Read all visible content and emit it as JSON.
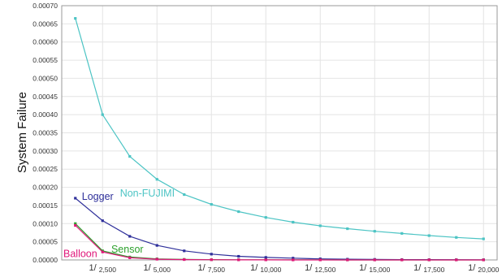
{
  "chart_data": {
    "type": "line",
    "title": "",
    "xlabel": "",
    "ylabel": "System Failure",
    "ylim": [
      0,
      0.0007
    ],
    "y_ticks": [
      "0.00000",
      "0.00005",
      "0.00010",
      "0.00015",
      "0.00020",
      "0.00025",
      "0.00030",
      "0.00035",
      "0.00040",
      "0.00045",
      "0.00050",
      "0.00055",
      "0.00060",
      "0.00065",
      "0.00070"
    ],
    "x_ticks": [
      {
        "pre": "1/",
        "num": "2,500"
      },
      {
        "pre": "1/",
        "num": "5,000"
      },
      {
        "pre": "1/",
        "num": "7,500"
      },
      {
        "pre": "1/",
        "num": "10,000"
      },
      {
        "pre": "1/",
        "num": "12,500"
      },
      {
        "pre": "1/",
        "num": "15,000"
      },
      {
        "pre": "1/",
        "num": "17,500"
      },
      {
        "pre": "1/",
        "num": "20,000"
      }
    ],
    "grid": true,
    "x": [
      1250,
      2500,
      3750,
      5000,
      6250,
      7500,
      8750,
      10000,
      11250,
      12500,
      13750,
      15000,
      16250,
      17500,
      18750,
      20000
    ],
    "series": [
      {
        "name": "Non-FUJIMI",
        "color": "#4cc4c4",
        "values": [
          0.000665,
          0.0004,
          0.000285,
          0.000222,
          0.00018,
          0.000153,
          0.000133,
          0.000117,
          0.000104,
          9.4e-05,
          8.6e-05,
          7.9e-05,
          7.3e-05,
          6.7e-05,
          6.2e-05,
          5.8e-05
        ]
      },
      {
        "name": "Logger",
        "color": "#2e2f9a",
        "values": [
          0.00017,
          0.000108,
          6.5e-05,
          4e-05,
          2.5e-05,
          1.6e-05,
          1e-05,
          7e-06,
          5e-06,
          3e-06,
          2e-06,
          1.5e-06,
          1e-06,
          8e-07,
          6e-07,
          5e-07
        ]
      },
      {
        "name": "Sensor",
        "color": "#2ca02c",
        "values": [
          0.0001,
          2.5e-05,
          8e-06,
          3e-06,
          1.5e-06,
          8e-07,
          5e-07,
          3e-07,
          2e-07,
          2e-07,
          1e-07,
          1e-07,
          1e-07,
          1e-07,
          1e-07,
          1e-07
        ]
      },
      {
        "name": "Balloon",
        "color": "#e0177a",
        "values": [
          9.5e-05,
          2.2e-05,
          6e-06,
          2e-06,
          1e-06,
          6e-07,
          3e-07,
          2e-07,
          1e-07,
          1e-07,
          1e-07,
          1e-07,
          1e-07,
          1e-07,
          1e-07,
          1e-07
        ]
      }
    ],
    "annotations": [
      {
        "text": "Non-FUJIMI",
        "color": "#4cc4c4"
      },
      {
        "text": "Logger",
        "color": "#2e2f9a"
      },
      {
        "text": "Sensor",
        "color": "#2ca02c"
      },
      {
        "text": "Balloon",
        "color": "#e0177a"
      }
    ]
  }
}
